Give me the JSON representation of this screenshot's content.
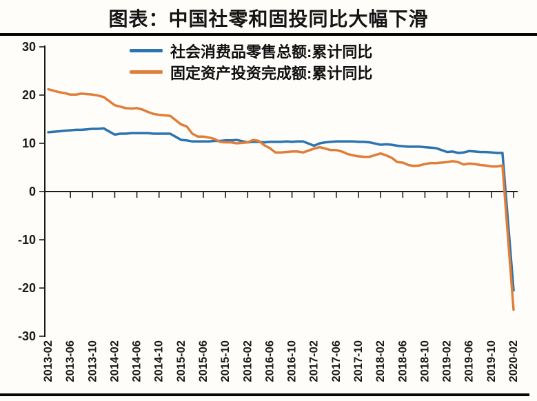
{
  "title": "图表：中国社零和固投同比大幅下滑",
  "colors": {
    "retail": "#2B74B0",
    "fai": "#E07E39",
    "axis": "#1a1a1a",
    "background": "#fefdfa"
  },
  "legend": [
    {
      "label": "社会消费品零售总额:累计同比",
      "series": "retail"
    },
    {
      "label": "固定资产投资完成额:累计同比",
      "series": "fai"
    }
  ],
  "chart_data": {
    "type": "line",
    "title": "图表：中国社零和固投同比大幅下滑",
    "xlabel": "",
    "ylabel": "",
    "ylim": [
      -30,
      30
    ],
    "yticks": [
      30,
      20,
      10,
      0,
      -10,
      -20,
      -30
    ],
    "grid": false,
    "legend_position": "top-center",
    "xtick_labels": [
      "2013-02",
      "2013-06",
      "2013-10",
      "2014-02",
      "2014-06",
      "2014-10",
      "2015-02",
      "2015-06",
      "2015-10",
      "2016-02",
      "2016-06",
      "2016-10",
      "2017-02",
      "2017-06",
      "2017-10",
      "2018-02",
      "2018-06",
      "2018-10",
      "2019-02",
      "2019-06",
      "2019-10",
      "2020-02"
    ],
    "x": [
      "2013-02",
      "2013-03",
      "2013-04",
      "2013-05",
      "2013-06",
      "2013-07",
      "2013-08",
      "2013-09",
      "2013-10",
      "2013-11",
      "2013-12",
      "2014-02",
      "2014-03",
      "2014-04",
      "2014-05",
      "2014-06",
      "2014-07",
      "2014-08",
      "2014-09",
      "2014-10",
      "2014-11",
      "2014-12",
      "2015-02",
      "2015-03",
      "2015-04",
      "2015-05",
      "2015-06",
      "2015-07",
      "2015-08",
      "2015-09",
      "2015-10",
      "2015-11",
      "2015-12",
      "2016-02",
      "2016-03",
      "2016-04",
      "2016-05",
      "2016-06",
      "2016-07",
      "2016-08",
      "2016-09",
      "2016-10",
      "2016-11",
      "2016-12",
      "2017-02",
      "2017-03",
      "2017-04",
      "2017-05",
      "2017-06",
      "2017-07",
      "2017-08",
      "2017-09",
      "2017-10",
      "2017-11",
      "2017-12",
      "2018-02",
      "2018-03",
      "2018-04",
      "2018-05",
      "2018-06",
      "2018-07",
      "2018-08",
      "2018-09",
      "2018-10",
      "2018-11",
      "2018-12",
      "2019-02",
      "2019-03",
      "2019-04",
      "2019-05",
      "2019-06",
      "2019-07",
      "2019-08",
      "2019-09",
      "2019-10",
      "2019-11",
      "2019-12",
      "2020-02"
    ],
    "series": [
      {
        "name": "社会消费品零售总额:累计同比",
        "color_key": "retail",
        "values": [
          12.3,
          12.4,
          12.5,
          12.6,
          12.7,
          12.8,
          12.8,
          12.9,
          13.0,
          13.0,
          13.1,
          11.8,
          12.0,
          12.0,
          12.1,
          12.1,
          12.1,
          12.1,
          12.0,
          12.0,
          12.0,
          12.0,
          10.7,
          10.6,
          10.4,
          10.4,
          10.4,
          10.4,
          10.5,
          10.5,
          10.6,
          10.6,
          10.7,
          10.2,
          10.3,
          10.3,
          10.2,
          10.3,
          10.3,
          10.3,
          10.4,
          10.3,
          10.4,
          10.4,
          9.5,
          10.0,
          10.2,
          10.3,
          10.4,
          10.4,
          10.4,
          10.4,
          10.3,
          10.3,
          10.2,
          9.7,
          9.8,
          9.7,
          9.5,
          9.4,
          9.3,
          9.3,
          9.3,
          9.2,
          9.1,
          9.0,
          8.2,
          8.3,
          8.0,
          8.1,
          8.4,
          8.3,
          8.2,
          8.2,
          8.1,
          8.0,
          8.0,
          -20.5
        ]
      },
      {
        "name": "固定资产投资完成额:累计同比",
        "color_key": "fai",
        "values": [
          21.2,
          20.9,
          20.6,
          20.4,
          20.1,
          20.1,
          20.3,
          20.2,
          20.1,
          19.9,
          19.6,
          17.9,
          17.6,
          17.3,
          17.2,
          17.3,
          17.0,
          16.5,
          16.1,
          15.9,
          15.8,
          15.7,
          13.9,
          13.5,
          12.0,
          11.4,
          11.4,
          11.2,
          10.9,
          10.3,
          10.2,
          10.2,
          10.0,
          10.2,
          10.7,
          10.5,
          9.6,
          9.0,
          8.1,
          8.1,
          8.2,
          8.3,
          8.3,
          8.1,
          8.9,
          9.2,
          8.9,
          8.6,
          8.6,
          8.3,
          7.8,
          7.5,
          7.3,
          7.2,
          7.2,
          7.9,
          7.5,
          7.0,
          6.1,
          6.0,
          5.5,
          5.3,
          5.4,
          5.7,
          5.9,
          5.9,
          6.1,
          6.3,
          6.1,
          5.6,
          5.8,
          5.7,
          5.5,
          5.4,
          5.2,
          5.2,
          5.4,
          -24.5
        ]
      }
    ]
  }
}
